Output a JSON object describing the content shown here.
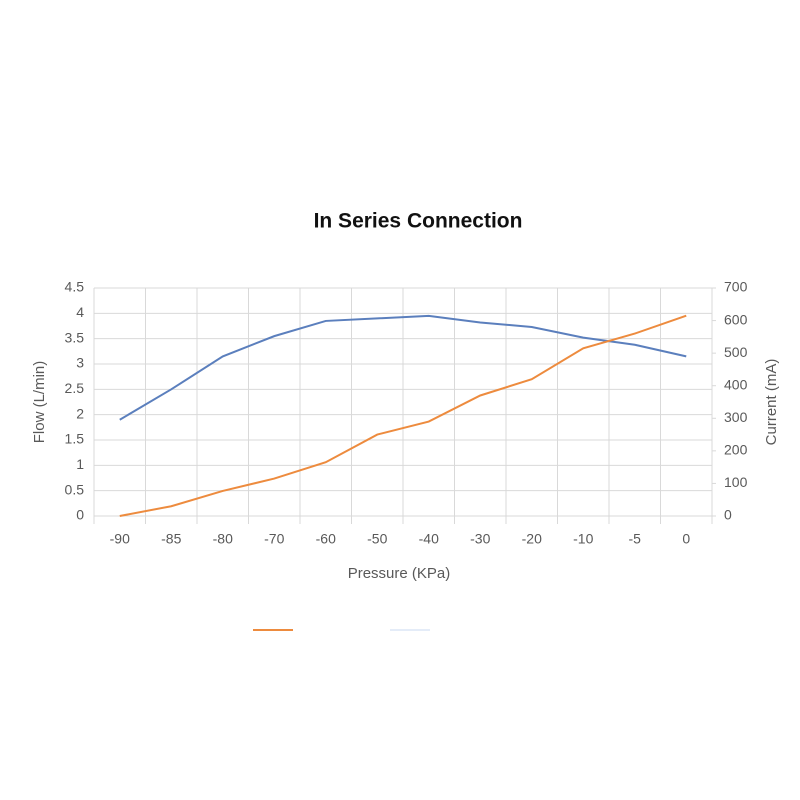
{
  "chart_data": {
    "type": "line",
    "title": "In Series Connection",
    "x_label": "Pressure (KPa)",
    "y_label": "Flow (L/min)",
    "y2_label": "Current (mA)",
    "categories": [
      "-90",
      "-85",
      "-80",
      "-70",
      "-60",
      "-50",
      "-40",
      "-30",
      "-20",
      "-10",
      "-5",
      "0"
    ],
    "series": [
      {
        "color": "#5b7fbd",
        "values": [
          1.9,
          2.5,
          3.15,
          3.55,
          3.85,
          3.9,
          3.95,
          3.82,
          3.73,
          3.52,
          3.38,
          3.15
        ]
      },
      {
        "color": "#ed8b3e",
        "axis": "y2",
        "values": [
          0,
          30,
          77,
          115,
          165,
          250,
          290,
          370,
          420,
          515,
          560,
          615
        ]
      }
    ],
    "ylim": [
      0,
      4.5
    ],
    "yticks": [
      0,
      0.5,
      1,
      1.5,
      2,
      2.5,
      3,
      3.5,
      4,
      4.5
    ],
    "y2lim": [
      0,
      700
    ],
    "y2ticks": [
      0,
      100,
      200,
      300,
      400,
      500,
      600,
      700
    ],
    "grid": true
  }
}
